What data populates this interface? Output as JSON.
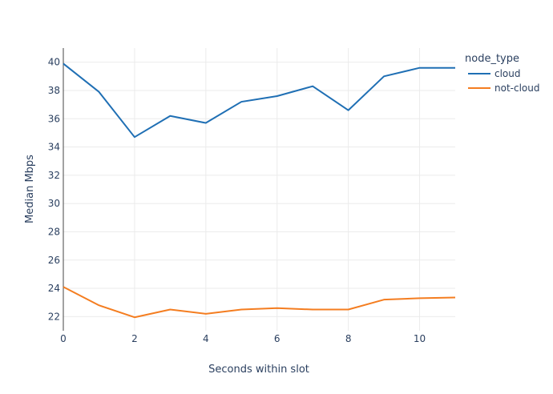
{
  "chart_data": {
    "type": "line",
    "xlabel": "Seconds within slot",
    "ylabel": "Median Mbps",
    "xlim": [
      0,
      11
    ],
    "ylim": [
      21,
      41
    ],
    "xticks": [
      0,
      2,
      4,
      6,
      8,
      10
    ],
    "yticks": [
      22,
      24,
      26,
      28,
      30,
      32,
      34,
      36,
      38,
      40
    ],
    "grid": true,
    "legend": {
      "title": "node_type",
      "position": "top-right"
    },
    "x": [
      0,
      1,
      2,
      3,
      4,
      5,
      6,
      7,
      8,
      9,
      10,
      11
    ],
    "series": [
      {
        "name": "cloud",
        "color": "#1f6fb4",
        "values": [
          39.9,
          37.9,
          34.7,
          36.2,
          35.7,
          37.2,
          37.6,
          38.3,
          36.6,
          39.0,
          39.6,
          39.6
        ]
      },
      {
        "name": "not-cloud",
        "color": "#f47d20",
        "values": [
          24.1,
          22.8,
          21.95,
          22.5,
          22.2,
          22.5,
          22.6,
          22.5,
          22.5,
          23.2,
          23.3,
          23.35
        ]
      }
    ]
  }
}
